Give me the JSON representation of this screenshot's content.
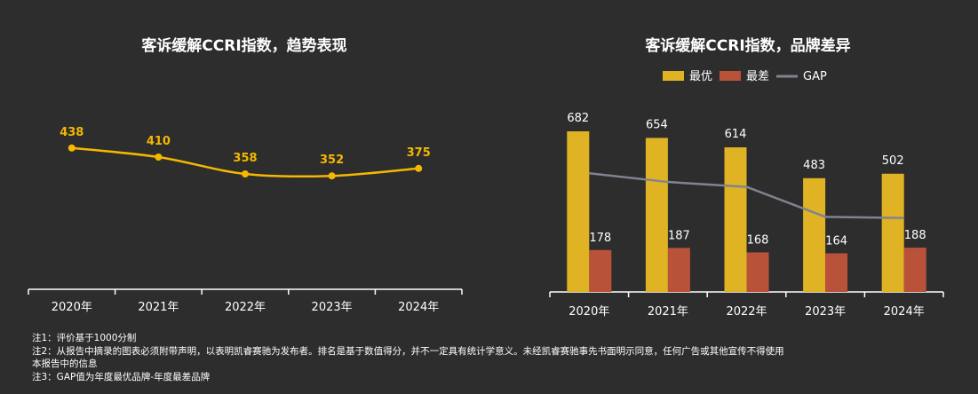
{
  "chart_data": [
    {
      "type": "line",
      "title": "客诉缓解CCRI指数，趋势表现",
      "categories": [
        "2020年",
        "2021年",
        "2022年",
        "2023年",
        "2024年"
      ],
      "values": [
        438,
        410,
        358,
        352,
        375
      ],
      "colors": {
        "line": "#f5b800",
        "axis": "#ffffff"
      },
      "grid": false
    },
    {
      "type": "bar",
      "title": "客诉缓解CCRI指数，品牌差异",
      "categories": [
        "2020年",
        "2021年",
        "2022年",
        "2023年",
        "2024年"
      ],
      "series": [
        {
          "name": "最优",
          "kind": "bar",
          "color": "#e0b324",
          "values": [
            682,
            654,
            614,
            483,
            502
          ]
        },
        {
          "name": "最差",
          "kind": "bar",
          "color": "#b8533a",
          "values": [
            178,
            187,
            168,
            164,
            188
          ]
        },
        {
          "name": "GAP",
          "kind": "line",
          "color": "#7f8490",
          "values": [
            504,
            467,
            446,
            319,
            314
          ]
        }
      ],
      "legend": "top-center",
      "grid": false
    }
  ],
  "notes": [
    "注1：评价基于1000分制",
    "注2：从报告中摘录的图表必须附带声明，以表明凯睿赛驰为发布者。排名是基于数值得分，并不一定具有统计学意义。未经凯睿赛驰事先书面明示同意，任何广告或其他宣传不得使用",
    "本报告中的信息",
    "注3：GAP值为年度最优品牌-年度最差品牌"
  ]
}
